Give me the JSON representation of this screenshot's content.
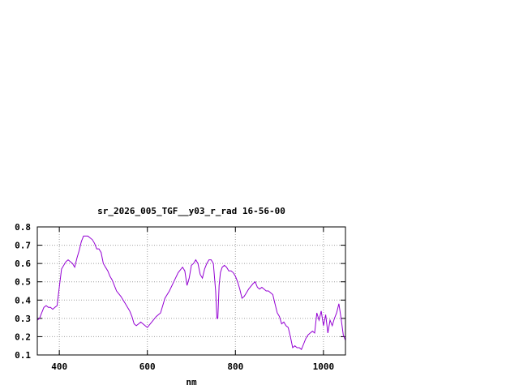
{
  "chart_data": {
    "type": "line",
    "title": "sr_2026_005_TGF__y03_r_rad 16-56-00",
    "xlabel": "nm",
    "ylabel": "",
    "xlim": [
      350,
      1050
    ],
    "ylim": [
      0.1,
      0.8
    ],
    "xticks": [
      400,
      600,
      800,
      1000
    ],
    "xtick_labels": [
      "400",
      "600",
      "800",
      "1000"
    ],
    "yticks": [
      0.1,
      0.2,
      0.3,
      0.4,
      0.5,
      0.6,
      0.7,
      0.8
    ],
    "ytick_labels": [
      "0.1",
      "0.2",
      "0.3",
      "0.4",
      "0.5",
      "0.6",
      "0.7",
      "0.8"
    ],
    "grid": true,
    "legend": "none",
    "series": [
      {
        "color": "#9400d3",
        "x": [
          350,
          355,
          360,
          365,
          370,
          375,
          380,
          385,
          390,
          395,
          400,
          405,
          410,
          415,
          420,
          425,
          430,
          435,
          440,
          445,
          450,
          455,
          460,
          465,
          470,
          475,
          480,
          485,
          490,
          495,
          500,
          505,
          510,
          515,
          520,
          525,
          530,
          540,
          550,
          560,
          565,
          570,
          575,
          580,
          585,
          590,
          595,
          600,
          610,
          620,
          630,
          640,
          650,
          660,
          670,
          680,
          685,
          690,
          695,
          700,
          705,
          710,
          715,
          720,
          725,
          730,
          735,
          740,
          745,
          750,
          755,
          758,
          760,
          763,
          766,
          770,
          775,
          780,
          785,
          790,
          795,
          800,
          805,
          810,
          815,
          820,
          825,
          830,
          840,
          845,
          850,
          855,
          860,
          870,
          875,
          880,
          885,
          890,
          895,
          900,
          905,
          910,
          915,
          920,
          925,
          930,
          935,
          940,
          945,
          950,
          955,
          960,
          965,
          970,
          975,
          980,
          985,
          990,
          995,
          1000,
          1005,
          1010,
          1015,
          1020,
          1025,
          1030,
          1035,
          1040,
          1045,
          1050
        ],
        "y": [
          0.29,
          0.3,
          0.33,
          0.36,
          0.37,
          0.36,
          0.36,
          0.35,
          0.36,
          0.37,
          0.47,
          0.57,
          0.59,
          0.61,
          0.62,
          0.61,
          0.6,
          0.58,
          0.63,
          0.67,
          0.72,
          0.75,
          0.75,
          0.75,
          0.74,
          0.73,
          0.71,
          0.68,
          0.68,
          0.66,
          0.6,
          0.58,
          0.56,
          0.53,
          0.51,
          0.48,
          0.45,
          0.42,
          0.38,
          0.34,
          0.31,
          0.27,
          0.26,
          0.27,
          0.28,
          0.27,
          0.26,
          0.25,
          0.28,
          0.31,
          0.33,
          0.41,
          0.45,
          0.5,
          0.55,
          0.58,
          0.56,
          0.48,
          0.52,
          0.59,
          0.6,
          0.62,
          0.6,
          0.54,
          0.52,
          0.57,
          0.6,
          0.62,
          0.62,
          0.6,
          0.45,
          0.3,
          0.3,
          0.48,
          0.55,
          0.58,
          0.59,
          0.58,
          0.56,
          0.56,
          0.55,
          0.53,
          0.5,
          0.46,
          0.41,
          0.42,
          0.44,
          0.46,
          0.49,
          0.5,
          0.47,
          0.46,
          0.47,
          0.45,
          0.45,
          0.44,
          0.43,
          0.38,
          0.33,
          0.31,
          0.27,
          0.28,
          0.26,
          0.25,
          0.2,
          0.14,
          0.15,
          0.14,
          0.14,
          0.13,
          0.16,
          0.19,
          0.21,
          0.22,
          0.23,
          0.22,
          0.33,
          0.29,
          0.34,
          0.26,
          0.32,
          0.22,
          0.29,
          0.26,
          0.3,
          0.33,
          0.38,
          0.3,
          0.21,
          0.18
        ]
      }
    ]
  }
}
